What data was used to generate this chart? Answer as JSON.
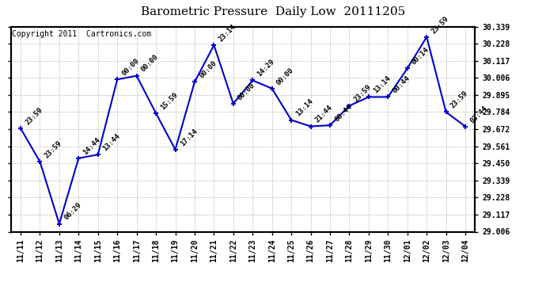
{
  "title": "Barometric Pressure  Daily Low  20111205",
  "copyright": "Copyright 2011  Cartronics.com",
  "x_labels": [
    "11/11",
    "11/12",
    "11/13",
    "11/14",
    "11/15",
    "11/16",
    "11/17",
    "11/18",
    "11/19",
    "11/20",
    "11/21",
    "11/22",
    "11/23",
    "11/24",
    "11/25",
    "11/26",
    "11/27",
    "11/28",
    "11/29",
    "11/30",
    "12/01",
    "12/02",
    "12/03",
    "12/04"
  ],
  "y_values": [
    29.678,
    29.461,
    29.057,
    29.484,
    29.507,
    29.996,
    30.02,
    29.776,
    29.54,
    29.98,
    30.219,
    29.839,
    29.99,
    29.937,
    29.732,
    29.691,
    29.698,
    29.825,
    29.882,
    29.882,
    30.068,
    30.272,
    29.784,
    29.69
  ],
  "point_labels": [
    "23:59",
    "23:59",
    "06:29",
    "14:44",
    "13:44",
    "00:00",
    "00:00",
    "15:59",
    "17:14",
    "00:00",
    "23:14",
    "00:00",
    "14:29",
    "00:00",
    "13:14",
    "21:44",
    "00:44",
    "23:59",
    "13:14",
    "00:44",
    "00:14",
    "23:59",
    "23:59",
    "03:44"
  ],
  "y_min": 29.006,
  "y_max": 30.339,
  "y_ticks": [
    29.006,
    29.117,
    29.228,
    29.339,
    29.45,
    29.561,
    29.672,
    29.784,
    29.895,
    30.006,
    30.117,
    30.228,
    30.339
  ],
  "line_color": "#0000cc",
  "marker_color": "#0000cc",
  "bg_color": "#ffffff",
  "plot_bg_color": "#ffffff",
  "grid_color": "#aaaaaa",
  "title_fontsize": 11,
  "copyright_fontsize": 7,
  "label_fontsize": 6.5
}
